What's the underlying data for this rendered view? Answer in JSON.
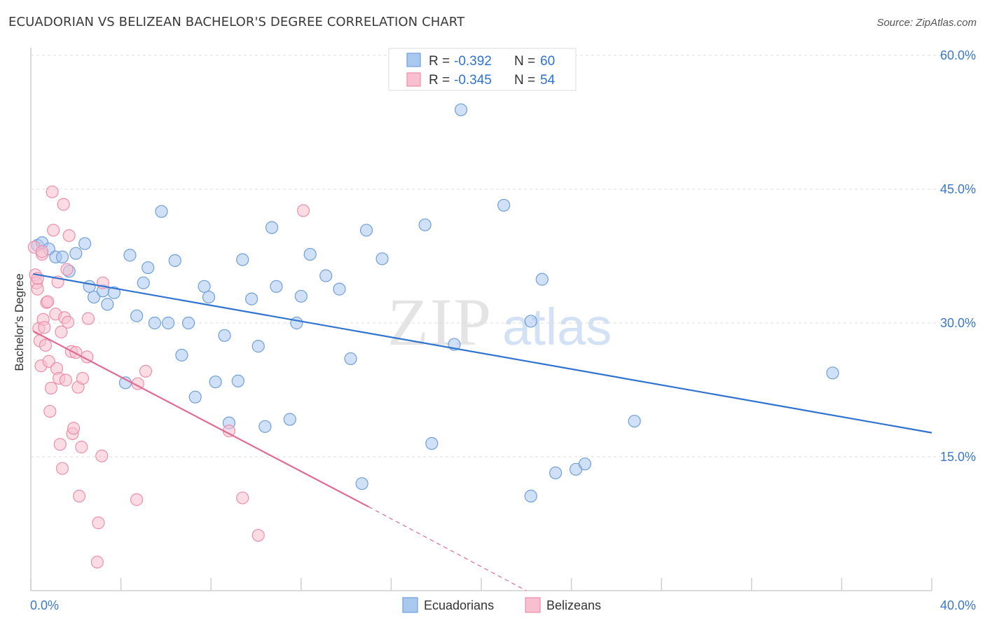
{
  "title": "ECUADORIAN VS BELIZEAN BACHELOR'S DEGREE CORRELATION CHART",
  "source": "Source: ZipAtlas.com",
  "watermark": {
    "zip": "ZIP",
    "atlas": "atlas"
  },
  "chart_data": {
    "type": "scatter",
    "title": "ECUADORIAN VS BELIZEAN BACHELOR'S DEGREE CORRELATION CHART",
    "xlabel": "",
    "ylabel": "Bachelor's Degree",
    "xlim": [
      0,
      40
    ],
    "ylim": [
      0,
      60
    ],
    "x_tick_labels": [
      {
        "value": 0,
        "label": "0.0%"
      },
      {
        "value": 40,
        "label": "40.0%"
      }
    ],
    "y_tick_labels": [
      {
        "value": 15,
        "label": "15.0%"
      },
      {
        "value": 30,
        "label": "30.0%"
      },
      {
        "value": 45,
        "label": "45.0%"
      },
      {
        "value": 60,
        "label": "60.0%"
      }
    ],
    "grid": true,
    "legend_position": "top-center",
    "series": [
      {
        "name": "Ecuadorians",
        "color": "#a9c8f0",
        "stroke": "#6f9fd9",
        "line_color": "#2f72d0",
        "r_label": "R =",
        "r_value": "-0.392",
        "n_label": "N =",
        "n_value": "60",
        "trend": {
          "x1": 0.1,
          "y1": 35.5,
          "x2": 40.0,
          "y2": 17.7
        },
        "points": [
          [
            0.3,
            38.7
          ],
          [
            0.5,
            39.0
          ],
          [
            0.8,
            38.3
          ],
          [
            1.1,
            37.4
          ],
          [
            1.4,
            37.4
          ],
          [
            1.7,
            35.8
          ],
          [
            2.0,
            37.8
          ],
          [
            2.4,
            38.9
          ],
          [
            2.6,
            34.1
          ],
          [
            2.8,
            32.9
          ],
          [
            3.2,
            33.6
          ],
          [
            3.4,
            32.1
          ],
          [
            3.7,
            33.4
          ],
          [
            4.2,
            23.3
          ],
          [
            4.4,
            37.6
          ],
          [
            4.7,
            30.8
          ],
          [
            5.0,
            34.5
          ],
          [
            5.2,
            36.2
          ],
          [
            5.5,
            30.0
          ],
          [
            5.8,
            42.5
          ],
          [
            6.1,
            30.0
          ],
          [
            6.4,
            37.0
          ],
          [
            6.7,
            26.4
          ],
          [
            7.0,
            30.0
          ],
          [
            7.3,
            21.7
          ],
          [
            7.7,
            34.1
          ],
          [
            7.9,
            32.9
          ],
          [
            8.2,
            23.4
          ],
          [
            8.6,
            28.6
          ],
          [
            8.8,
            18.8
          ],
          [
            9.2,
            23.5
          ],
          [
            9.4,
            37.1
          ],
          [
            9.8,
            32.7
          ],
          [
            10.1,
            27.4
          ],
          [
            10.4,
            18.4
          ],
          [
            10.7,
            40.7
          ],
          [
            10.9,
            34.1
          ],
          [
            11.5,
            19.2
          ],
          [
            11.8,
            30.0
          ],
          [
            12.0,
            33.0
          ],
          [
            12.4,
            37.7
          ],
          [
            13.1,
            35.3
          ],
          [
            13.7,
            33.8
          ],
          [
            14.2,
            26.0
          ],
          [
            14.7,
            12.0
          ],
          [
            14.9,
            40.4
          ],
          [
            15.6,
            37.2
          ],
          [
            17.5,
            41.0
          ],
          [
            17.8,
            16.5
          ],
          [
            19.1,
            53.9
          ],
          [
            18.8,
            27.6
          ],
          [
            21.0,
            43.2
          ],
          [
            22.2,
            10.6
          ],
          [
            22.2,
            30.2
          ],
          [
            22.7,
            34.9
          ],
          [
            23.3,
            13.2
          ],
          [
            24.2,
            13.6
          ],
          [
            24.6,
            14.2
          ],
          [
            26.8,
            19.0
          ],
          [
            35.6,
            24.4
          ]
        ]
      },
      {
        "name": "Belizeans",
        "color": "#f7bfd0",
        "stroke": "#ec8fac",
        "line_color": "#e06b93",
        "r_label": "R =",
        "r_value": "-0.345",
        "n_label": "N =",
        "n_value": "54",
        "trend": {
          "x1": 0.1,
          "y1": 29.1,
          "x2": 15.0,
          "y2": 9.4
        },
        "trend_dashed": {
          "x1": 15.0,
          "y1": 9.4,
          "x2": 22.0,
          "y2": 0.0
        },
        "points": [
          [
            0.15,
            38.5
          ],
          [
            0.2,
            35.4
          ],
          [
            0.25,
            34.5
          ],
          [
            0.3,
            33.8
          ],
          [
            0.35,
            29.4
          ],
          [
            0.4,
            28.0
          ],
          [
            0.45,
            25.2
          ],
          [
            0.5,
            37.7
          ],
          [
            0.55,
            30.4
          ],
          [
            0.6,
            29.5
          ],
          [
            0.65,
            27.5
          ],
          [
            0.7,
            32.3
          ],
          [
            0.75,
            32.4
          ],
          [
            0.8,
            25.7
          ],
          [
            0.85,
            20.1
          ],
          [
            0.9,
            22.7
          ],
          [
            0.95,
            44.7
          ],
          [
            1.0,
            40.4
          ],
          [
            1.1,
            31.0
          ],
          [
            1.15,
            24.9
          ],
          [
            1.2,
            34.6
          ],
          [
            1.25,
            23.8
          ],
          [
            1.3,
            16.4
          ],
          [
            1.35,
            29.0
          ],
          [
            1.4,
            13.7
          ],
          [
            1.45,
            43.3
          ],
          [
            1.5,
            30.6
          ],
          [
            1.55,
            23.6
          ],
          [
            1.6,
            36.0
          ],
          [
            1.65,
            30.1
          ],
          [
            1.7,
            39.8
          ],
          [
            1.8,
            26.8
          ],
          [
            1.85,
            17.6
          ],
          [
            1.9,
            18.2
          ],
          [
            2.0,
            26.7
          ],
          [
            2.1,
            22.8
          ],
          [
            2.15,
            10.6
          ],
          [
            2.25,
            16.1
          ],
          [
            2.3,
            23.8
          ],
          [
            2.5,
            26.2
          ],
          [
            2.55,
            30.5
          ],
          [
            3.0,
            7.6
          ],
          [
            2.95,
            3.2
          ],
          [
            3.15,
            15.1
          ],
          [
            3.2,
            34.5
          ],
          [
            4.7,
            10.2
          ],
          [
            4.75,
            23.2
          ],
          [
            5.1,
            24.6
          ],
          [
            8.8,
            17.9
          ],
          [
            9.4,
            10.4
          ],
          [
            10.1,
            6.2
          ],
          [
            12.1,
            42.6
          ],
          [
            0.3,
            35.0
          ],
          [
            0.5,
            38.0
          ]
        ]
      }
    ]
  },
  "bottom_legend": [
    {
      "label": "Ecuadorians"
    },
    {
      "label": "Belizeans"
    }
  ]
}
